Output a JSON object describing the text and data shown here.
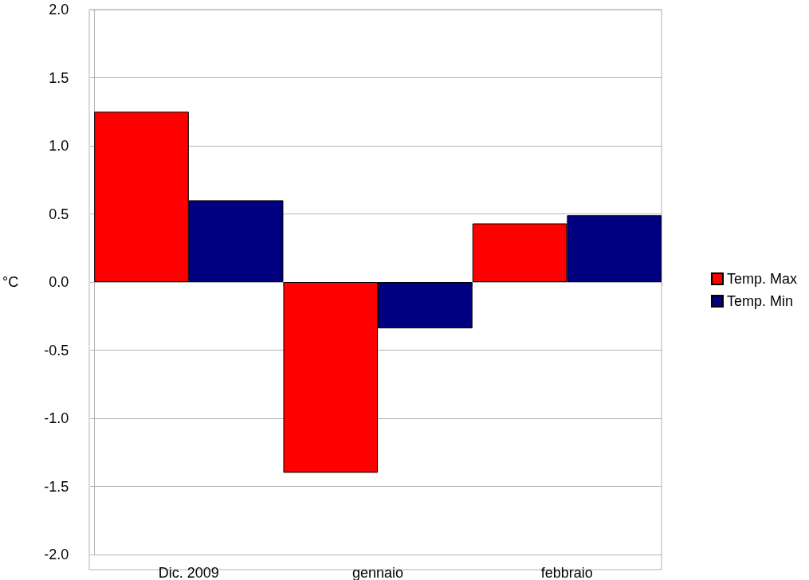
{
  "chart_data": {
    "type": "bar",
    "ylabel": "°C",
    "categories": [
      "Dic. 2009",
      "gennaio",
      "febbraio"
    ],
    "series": [
      {
        "name": "Temp. Max",
        "color": "#ff0000",
        "values": [
          1.25,
          -1.4,
          0.43
        ]
      },
      {
        "name": "Temp. Min",
        "color": "#000080",
        "values": [
          0.6,
          -0.34,
          0.49
        ]
      }
    ],
    "ylim": [
      -2,
      2
    ],
    "yticks": [
      {
        "value": -2,
        "label": "-2.0"
      },
      {
        "value": -1.5,
        "label": "-1.5"
      },
      {
        "value": -1,
        "label": "-1.0"
      },
      {
        "value": -0.5,
        "label": "-0.5"
      },
      {
        "value": 0,
        "label": "0.0"
      },
      {
        "value": 0.5,
        "label": "0.5"
      },
      {
        "value": 1,
        "label": "1.0"
      },
      {
        "value": 1.5,
        "label": "1.5"
      },
      {
        "value": 2,
        "label": "2.0"
      }
    ],
    "grid": "y",
    "legend": "right"
  }
}
